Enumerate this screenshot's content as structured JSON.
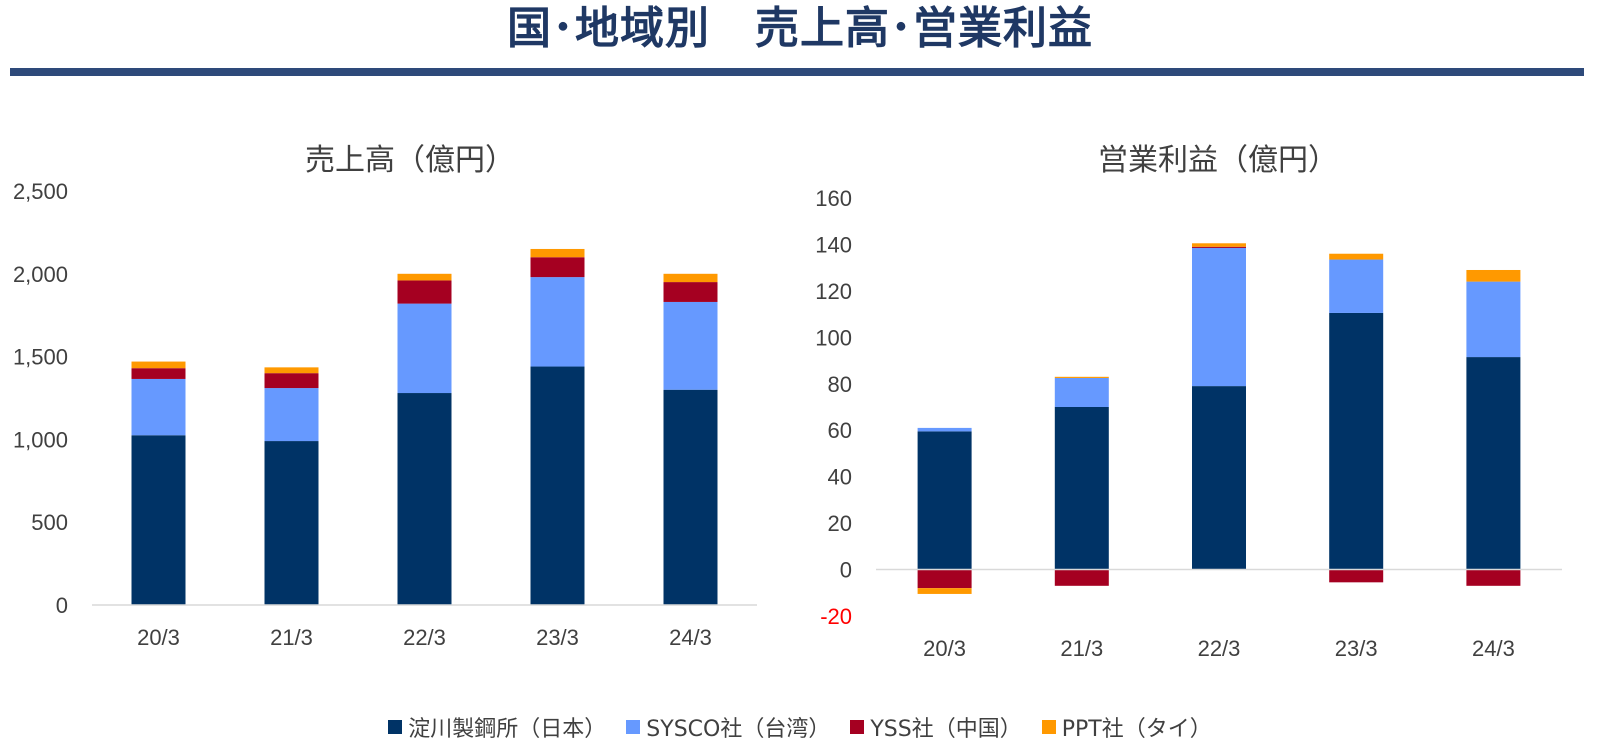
{
  "page": {
    "title": "国･地域別　売上高･営業利益"
  },
  "colors": {
    "japan": "#003366",
    "taiwan": "#6699ff",
    "china": "#a50021",
    "thailand": "#ff9900"
  },
  "legend": [
    {
      "key": "japan",
      "label": "淀川製鋼所（日本）"
    },
    {
      "key": "taiwan",
      "label": "SYSCO社（台湾）"
    },
    {
      "key": "china",
      "label": "YSS社（中国）"
    },
    {
      "key": "thailand",
      "label": "PPT社（タイ）"
    }
  ],
  "chart_data": [
    {
      "type": "bar",
      "stacked": true,
      "title": "売上高（億円）",
      "categories": [
        "20/3",
        "21/3",
        "22/3",
        "23/3",
        "24/3"
      ],
      "ylim": [
        0,
        2500
      ],
      "yticks": [
        0,
        500,
        1000,
        1500,
        2000,
        2500
      ],
      "ytick_labels": [
        "0",
        "500",
        "1,000",
        "1,500",
        "2,000",
        "2,500"
      ],
      "grid": false,
      "legend_position": "bottom",
      "series": [
        {
          "name": "淀川製鋼所（日本）",
          "key": "japan",
          "values": [
            1025,
            990,
            1280,
            1440,
            1300
          ]
        },
        {
          "name": "SYSCO社（台湾）",
          "key": "taiwan",
          "values": [
            340,
            320,
            540,
            540,
            530
          ]
        },
        {
          "name": "YSS社（中国）",
          "key": "china",
          "values": [
            65,
            90,
            140,
            120,
            120
          ]
        },
        {
          "name": "PPT社（タイ）",
          "key": "thailand",
          "values": [
            40,
            35,
            40,
            50,
            50
          ]
        }
      ]
    },
    {
      "type": "bar",
      "stacked": true,
      "title": "営業利益（億円）",
      "categories": [
        "20/3",
        "21/3",
        "22/3",
        "23/3",
        "24/3"
      ],
      "ylim": [
        -20,
        160
      ],
      "yticks": [
        -20,
        0,
        20,
        40,
        60,
        80,
        100,
        120,
        140,
        160
      ],
      "ytick_labels": [
        "-20",
        "0",
        "20",
        "40",
        "60",
        "80",
        "100",
        "120",
        "140",
        "160"
      ],
      "grid": false,
      "legend_position": "bottom",
      "series": [
        {
          "name": "淀川製鋼所（日本）",
          "key": "japan",
          "values": [
            59.5,
            70,
            79,
            110.5,
            91.5
          ]
        },
        {
          "name": "SYSCO社（台湾）",
          "key": "taiwan",
          "values": [
            1.5,
            12.5,
            59.5,
            23,
            32.5
          ]
        },
        {
          "name": "YSS社（中国）",
          "key": "china",
          "values": [
            -8,
            -7,
            0.5,
            -5.5,
            -7
          ]
        },
        {
          "name": "PPT社（タイ）",
          "key": "thailand",
          "values": [
            -2.5,
            0.5,
            1.5,
            2.5,
            5
          ]
        }
      ]
    }
  ]
}
